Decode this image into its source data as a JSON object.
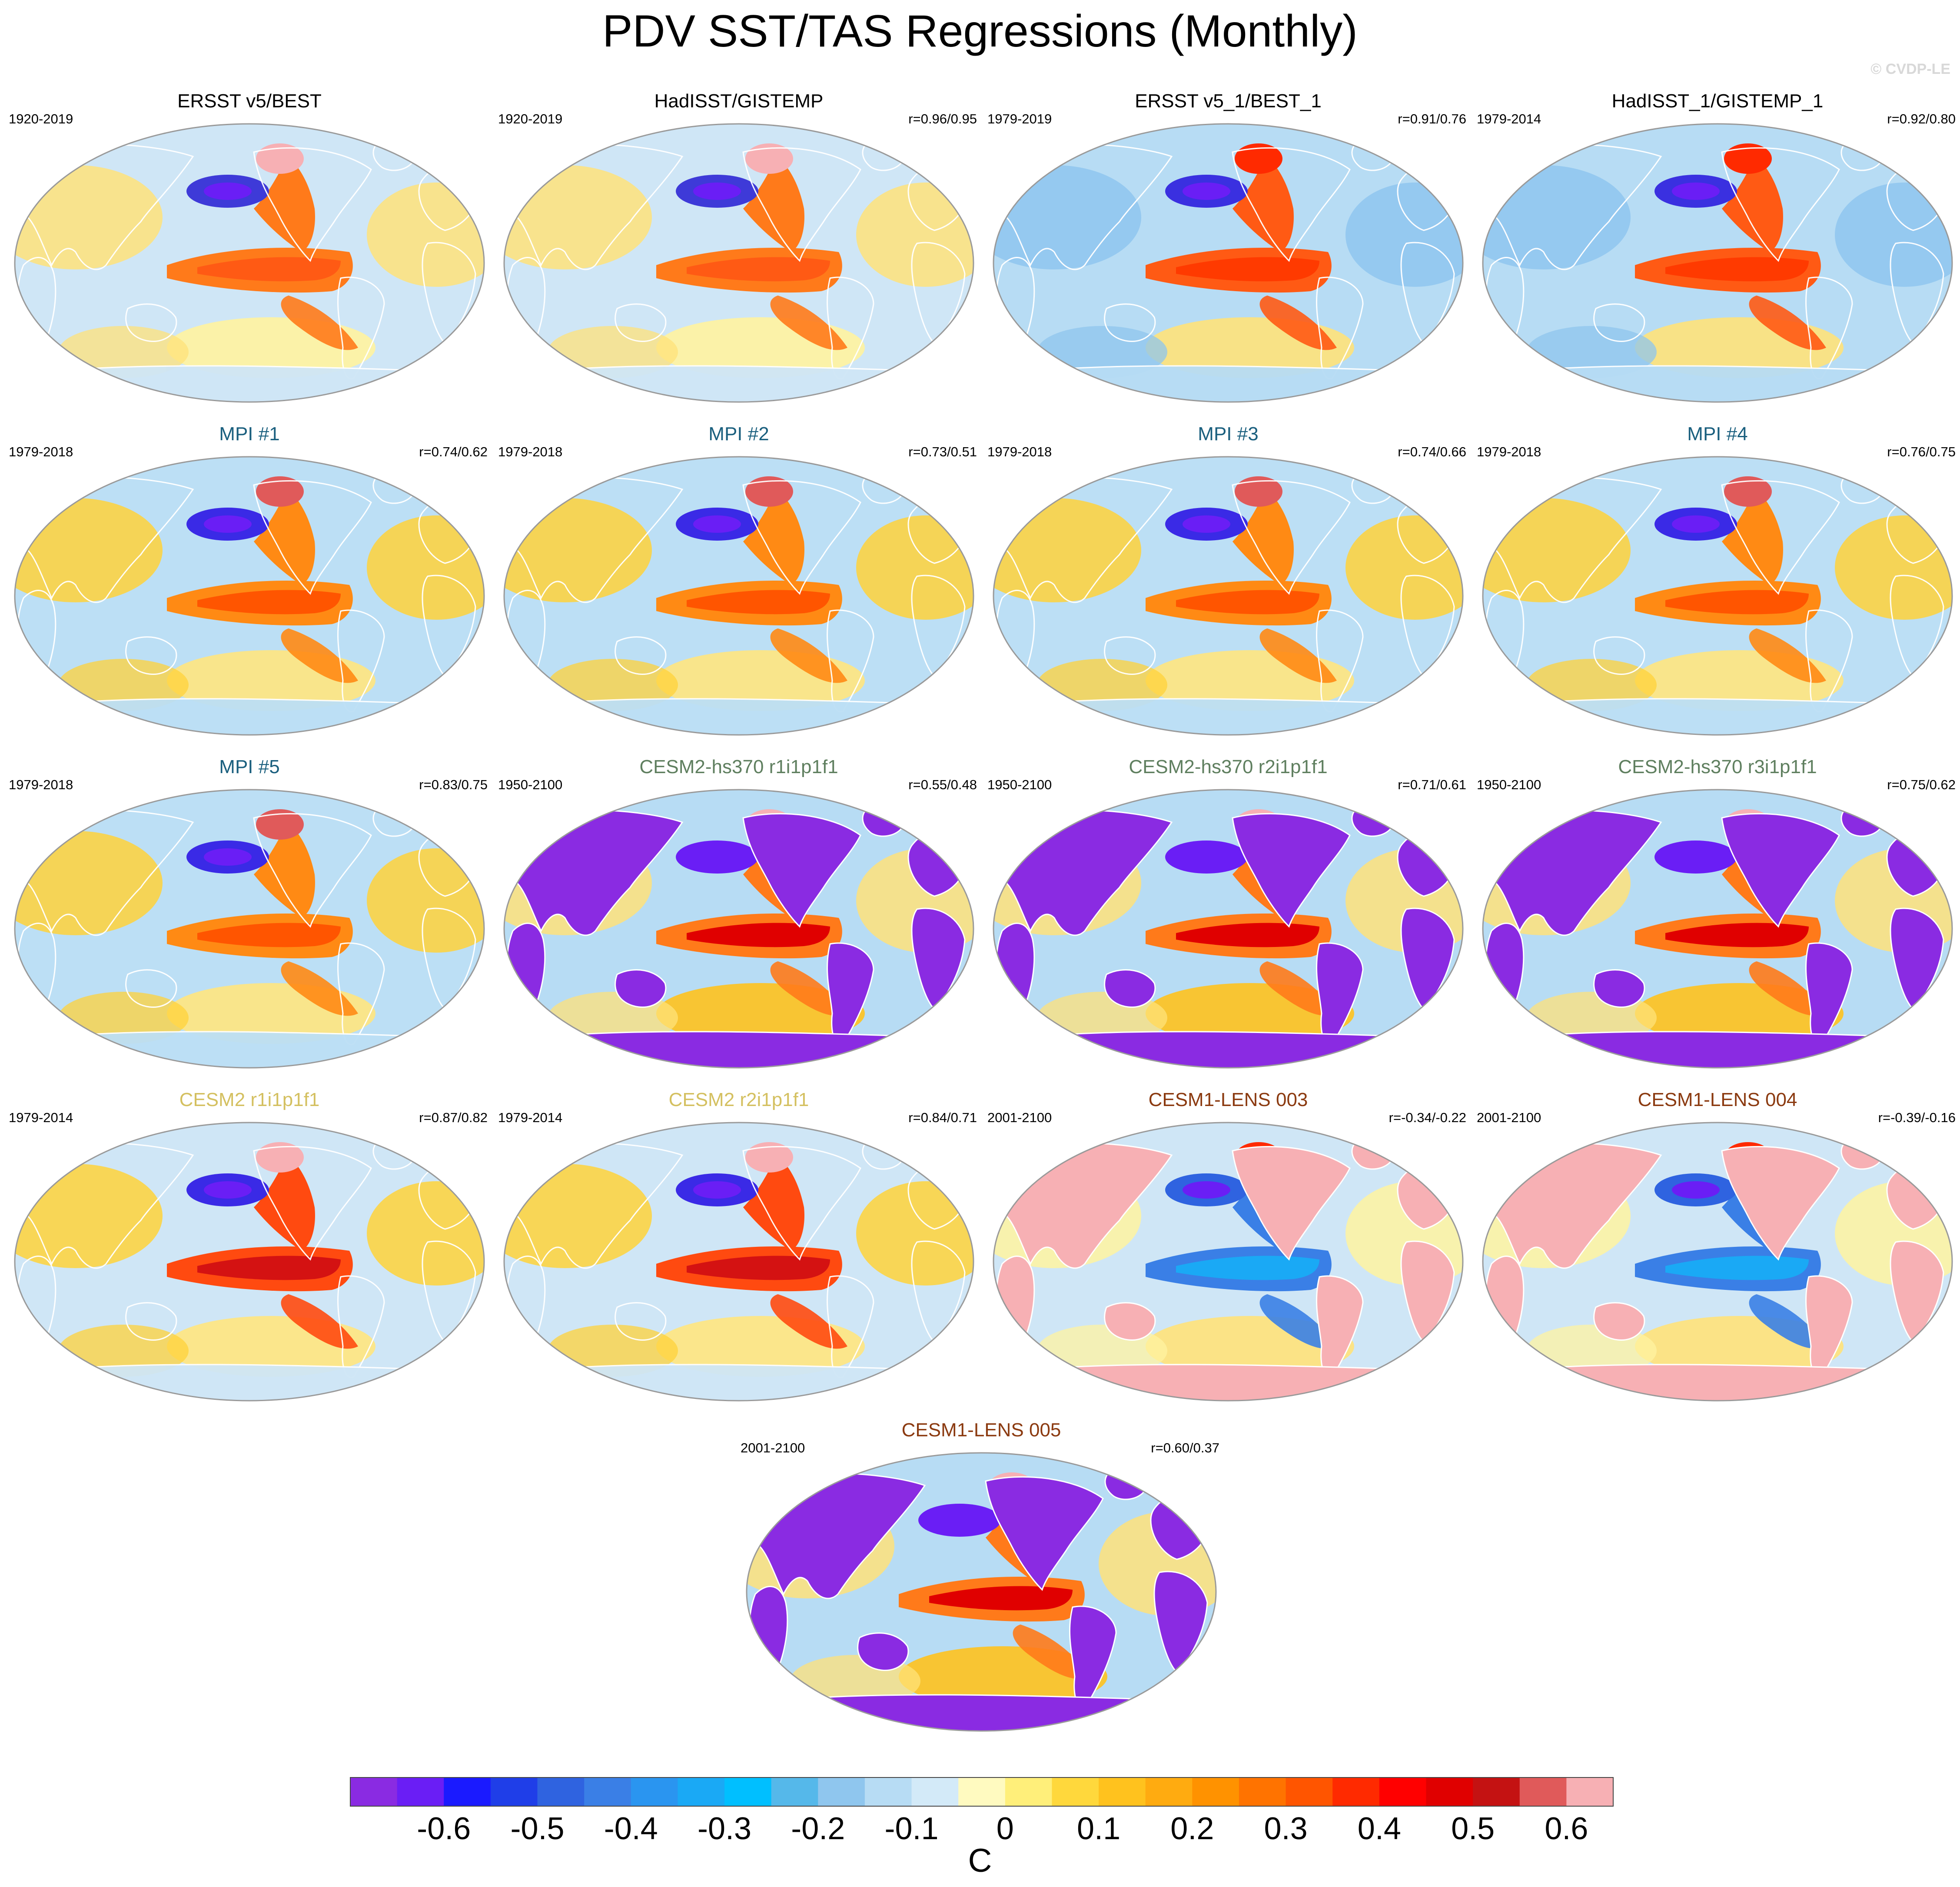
{
  "title": "PDV SST/TAS Regressions (Monthly)",
  "copyright": "© CVDP-LE",
  "colors": {
    "mpi_title": "#1a5f7e",
    "cesm2hs_title": "#5f7f5f",
    "cesm2_title": "#d4c060",
    "cesm1_title": "#8b3a10",
    "land_outline": "#ffffff"
  },
  "panels": [
    {
      "title": "ERSST v5/BEST",
      "years": "1920-2019",
      "r": "",
      "scheme": "obs",
      "title_color": "#000000"
    },
    {
      "title": "HadISST/GISTEMP",
      "years": "1920-2019",
      "r": "r=0.96/0.95",
      "scheme": "obs",
      "title_color": "#000000"
    },
    {
      "title": "ERSST v5_1/BEST_1",
      "years": "1979-2019",
      "r": "r=0.91/0.76",
      "scheme": "obs2",
      "title_color": "#000000"
    },
    {
      "title": "HadISST_1/GISTEMP_1",
      "years": "1979-2014",
      "r": "r=0.92/0.80",
      "scheme": "obs2",
      "title_color": "#000000"
    },
    {
      "title": "MPI #1",
      "years": "1979-2018",
      "r": "r=0.74/0.62",
      "scheme": "mpi",
      "title_color": "#1a5f7e"
    },
    {
      "title": "MPI #2",
      "years": "1979-2018",
      "r": "r=0.73/0.51",
      "scheme": "mpi",
      "title_color": "#1a5f7e"
    },
    {
      "title": "MPI #3",
      "years": "1979-2018",
      "r": "r=0.74/0.66",
      "scheme": "mpi",
      "title_color": "#1a5f7e"
    },
    {
      "title": "MPI #4",
      "years": "1979-2018",
      "r": "r=0.76/0.75",
      "scheme": "mpi",
      "title_color": "#1a5f7e"
    },
    {
      "title": "MPI #5",
      "years": "1979-2018",
      "r": "r=0.83/0.75",
      "scheme": "mpi",
      "title_color": "#1a5f7e"
    },
    {
      "title": "CESM2-hs370 r1i1p1f1",
      "years": "1950-2100",
      "r": "r=0.55/0.48",
      "scheme": "hs",
      "title_color": "#5f7f5f"
    },
    {
      "title": "CESM2-hs370 r2i1p1f1",
      "years": "1950-2100",
      "r": "r=0.71/0.61",
      "scheme": "hs",
      "title_color": "#5f7f5f"
    },
    {
      "title": "CESM2-hs370 r3i1p1f1",
      "years": "1950-2100",
      "r": "r=0.75/0.62",
      "scheme": "hs",
      "title_color": "#5f7f5f"
    },
    {
      "title": "CESM2 r1i1p1f1",
      "years": "1979-2014",
      "r": "r=0.87/0.82",
      "scheme": "cesm2",
      "title_color": "#d4c060"
    },
    {
      "title": "CESM2 r2i1p1f1",
      "years": "1979-2014",
      "r": "r=0.84/0.71",
      "scheme": "cesm2",
      "title_color": "#d4c060"
    },
    {
      "title": "CESM1-LENS 003",
      "years": "2001-2100",
      "r": "r=-0.34/-0.22",
      "scheme": "lenswarm",
      "title_color": "#8b3a10"
    },
    {
      "title": "CESM1-LENS 004",
      "years": "2001-2100",
      "r": "r=-0.39/-0.16",
      "scheme": "lenswarm",
      "title_color": "#8b3a10"
    },
    {
      "title": "CESM1-LENS 005",
      "years": "2001-2100",
      "r": "r=0.60/0.37",
      "scheme": "hs",
      "title_color": "#8b3a10"
    }
  ],
  "colorbar": {
    "colors": [
      "#8a2be2",
      "#6a1ef5",
      "#1a1aff",
      "#1f3ee8",
      "#2f63e0",
      "#3a7fe6",
      "#2a95f0",
      "#1aa9f5",
      "#00bfff",
      "#55b8ea",
      "#8fc6ee",
      "#b7dcf4",
      "#d3eaf8",
      "#fffac0",
      "#ffef7a",
      "#ffd83c",
      "#ffc21e",
      "#ffab10",
      "#ff9200",
      "#ff7300",
      "#ff5500",
      "#ff2a00",
      "#ff0000",
      "#e00000",
      "#c41212",
      "#e05a5a",
      "#f7b0b4"
    ],
    "ticks": [
      "-0.6",
      "-0.5",
      "-0.4",
      "-0.3",
      "-0.2",
      "-0.1",
      "0",
      "0.1",
      "0.2",
      "0.3",
      "0.4",
      "0.5",
      "0.6"
    ],
    "unit": "C"
  }
}
